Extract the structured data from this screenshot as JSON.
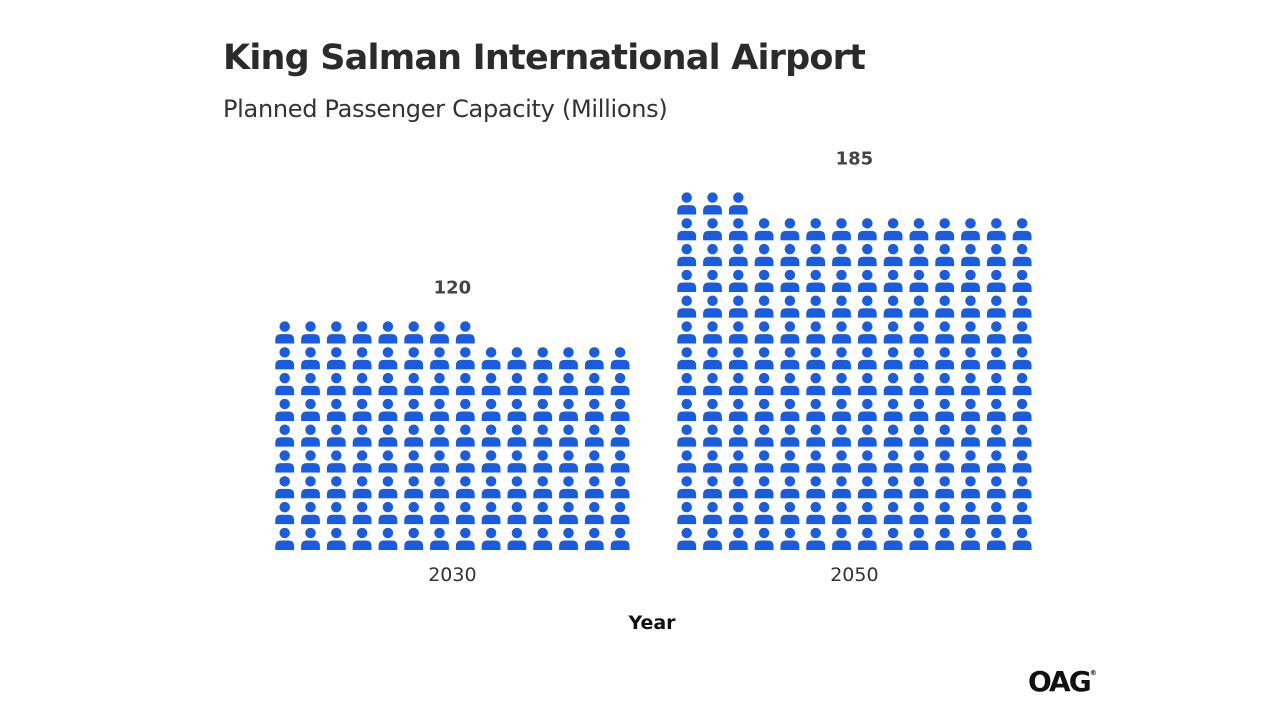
{
  "header": {
    "title": "King Salman International Airport",
    "subtitle": "Planned Passenger Capacity (Millions)"
  },
  "brand": {
    "logo_text": "OAG"
  },
  "colors": {
    "icon": "#1a5ce0",
    "text": "#2b2b2b"
  },
  "chart_data": {
    "type": "bar",
    "style": "pictogram",
    "icon": "person-icon",
    "units_per_icon": 1,
    "title": "King Salman International Airport",
    "subtitle": "Planned Passenger Capacity (Millions)",
    "xlabel": "Year",
    "ylabel": "",
    "categories": [
      "2030",
      "2050"
    ],
    "values": [
      120,
      185
    ],
    "data_labels": [
      "120",
      "185"
    ],
    "grid": false,
    "legend": "none"
  }
}
